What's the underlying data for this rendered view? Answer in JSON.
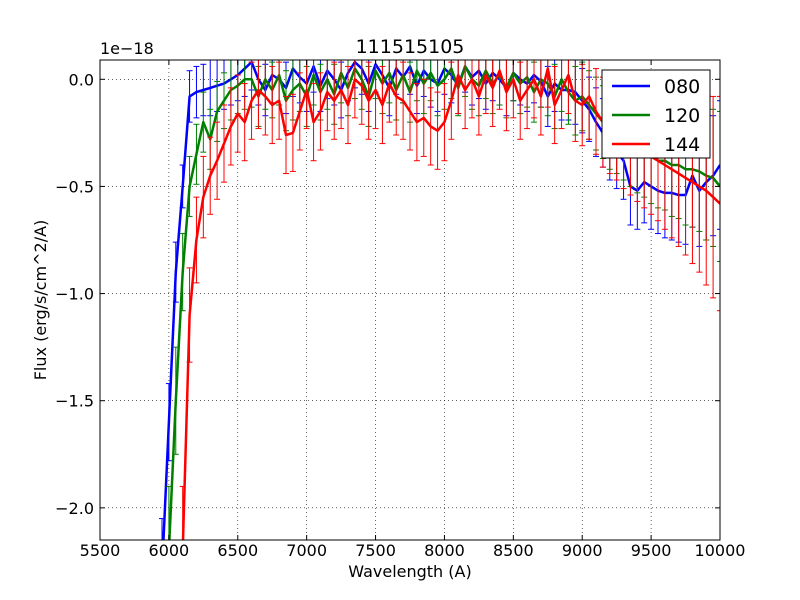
{
  "chart_data": {
    "type": "line",
    "title": "111515105",
    "xlabel": "Wavelength (A)",
    "ylabel": "Flux (erg/s/cm^2/A)",
    "y_offset_label": "1e−18",
    "xlim": [
      5500,
      10000
    ],
    "ylim": [
      -2.15,
      0.09
    ],
    "x_ticks": [
      5500,
      6000,
      6500,
      7000,
      7500,
      8000,
      8500,
      9000,
      9500,
      10000
    ],
    "x_tick_labels": [
      "5500",
      "6000",
      "6500",
      "7000",
      "7500",
      "8000",
      "8500",
      "9000",
      "9500",
      "10000"
    ],
    "y_ticks": [
      -2.0,
      -1.5,
      -1.0,
      -0.5,
      0.0
    ],
    "y_tick_labels": [
      "−2.0",
      "−1.5",
      "−1.0",
      "−0.5",
      "0.0"
    ],
    "grid": true,
    "legend_position": "top-right",
    "series": [
      {
        "name": "080",
        "color": "#0000ff",
        "x": [
          5950,
          6000,
          6050,
          6100,
          6150,
          6200,
          6250,
          6300,
          6350,
          6400,
          6450,
          6500,
          6550,
          6600,
          6650,
          6700,
          6750,
          6800,
          6850,
          6900,
          6950,
          7000,
          7050,
          7100,
          7150,
          7200,
          7250,
          7300,
          7350,
          7400,
          7450,
          7500,
          7550,
          7600,
          7650,
          7700,
          7750,
          7800,
          7850,
          7900,
          7950,
          8000,
          8050,
          8100,
          8150,
          8200,
          8250,
          8300,
          8350,
          8400,
          8450,
          8500,
          8550,
          8600,
          8650,
          8700,
          8750,
          8800,
          8850,
          8900,
          8950,
          9000,
          9050,
          9100,
          9150,
          9200,
          9250,
          9300,
          9350,
          9400,
          9450,
          9500,
          9550,
          9600,
          9650,
          9700,
          9750,
          9800,
          9850,
          9900,
          9950,
          10000
        ],
        "y": [
          -2.3,
          -1.6,
          -0.9,
          -0.5,
          -0.08,
          -0.06,
          -0.05,
          -0.04,
          -0.03,
          -0.02,
          0.0,
          0.02,
          0.05,
          0.08,
          0.0,
          -0.05,
          0.02,
          0.0,
          -0.04,
          0.05,
          0.01,
          -0.02,
          0.06,
          -0.03,
          0.04,
          0.0,
          -0.05,
          0.03,
          0.08,
          0.05,
          -0.02,
          0.07,
          0.02,
          -0.04,
          0.05,
          0.01,
          0.06,
          -0.03,
          0.04,
          0.0,
          -0.02,
          0.05,
          0.02,
          -0.03,
          0.06,
          0.01,
          0.04,
          -0.02,
          0.03,
          0.0,
          -0.04,
          0.03,
          0.0,
          -0.02,
          0.02,
          -0.01,
          -0.08,
          -0.02,
          -0.05,
          -0.05,
          -0.06,
          -0.1,
          -0.14,
          -0.2,
          -0.25,
          -0.3,
          -0.34,
          -0.38,
          -0.5,
          -0.52,
          -0.48,
          -0.5,
          -0.52,
          -0.53,
          -0.53,
          -0.54,
          -0.54,
          -0.45,
          -0.52,
          -0.48,
          -0.45,
          -0.4
        ],
        "err": [
          0.25,
          0.18,
          0.14,
          0.1,
          0.12,
          0.12,
          0.12,
          0.13,
          0.12,
          0.12,
          0.12,
          0.12,
          0.13,
          0.13,
          0.12,
          0.12,
          0.13,
          0.12,
          0.12,
          0.13,
          0.12,
          0.13,
          0.12,
          0.12,
          0.13,
          0.12,
          0.13,
          0.13,
          0.12,
          0.12,
          0.13,
          0.13,
          0.12,
          0.13,
          0.12,
          0.12,
          0.13,
          0.13,
          0.12,
          0.13,
          0.13,
          0.12,
          0.13,
          0.13,
          0.12,
          0.13,
          0.13,
          0.12,
          0.13,
          0.12,
          0.13,
          0.13,
          0.12,
          0.13,
          0.13,
          0.12,
          0.14,
          0.13,
          0.14,
          0.14,
          0.15,
          0.15,
          0.15,
          0.16,
          0.16,
          0.17,
          0.17,
          0.18,
          0.18,
          0.18,
          0.19,
          0.2,
          0.2,
          0.21,
          0.22,
          0.22,
          0.23,
          0.24,
          0.26,
          0.27,
          0.28,
          0.3
        ]
      },
      {
        "name": "120",
        "color": "#008000",
        "x": [
          6000,
          6050,
          6100,
          6150,
          6200,
          6250,
          6300,
          6350,
          6400,
          6450,
          6500,
          6550,
          6600,
          6650,
          6700,
          6750,
          6800,
          6850,
          6900,
          6950,
          7000,
          7050,
          7100,
          7150,
          7200,
          7250,
          7300,
          7350,
          7400,
          7450,
          7500,
          7550,
          7600,
          7650,
          7700,
          7750,
          7800,
          7850,
          7900,
          7950,
          8000,
          8050,
          8100,
          8150,
          8200,
          8250,
          8300,
          8350,
          8400,
          8450,
          8500,
          8550,
          8600,
          8650,
          8700,
          8750,
          8800,
          8850,
          8900,
          8950,
          9000,
          9050,
          9100,
          9150,
          9200,
          9250,
          9300,
          9350,
          9400,
          9450,
          9500,
          9550,
          9600,
          9650,
          9700,
          9750,
          9800,
          9850,
          9900,
          9950,
          10000
        ],
        "y": [
          -2.2,
          -1.5,
          -0.9,
          -0.5,
          -0.35,
          -0.2,
          -0.28,
          -0.15,
          -0.1,
          -0.05,
          -0.03,
          0.0,
          0.0,
          -0.08,
          0.0,
          -0.05,
          0.02,
          -0.1,
          -0.05,
          -0.02,
          -0.08,
          0.02,
          -0.06,
          0.0,
          -0.07,
          0.03,
          -0.04,
          0.05,
          0.0,
          -0.08,
          0.04,
          -0.02,
          0.03,
          -0.05,
          0.02,
          -0.06,
          0.04,
          -0.02,
          0.03,
          -0.03,
          0.0,
          0.05,
          -0.04,
          0.06,
          0.0,
          -0.03,
          0.04,
          -0.02,
          0.02,
          -0.04,
          0.03,
          -0.02,
          0.01,
          -0.06,
          0.0,
          -0.02,
          -0.08,
          0.0,
          -0.06,
          -0.1,
          -0.08,
          -0.12,
          -0.16,
          -0.2,
          -0.24,
          -0.26,
          -0.28,
          -0.3,
          -0.33,
          -0.34,
          -0.36,
          -0.38,
          -0.38,
          -0.4,
          -0.4,
          -0.42,
          -0.42,
          -0.43,
          -0.45,
          -0.46,
          -0.5
        ],
        "err": [
          0.3,
          0.25,
          0.18,
          0.14,
          0.14,
          0.14,
          0.14,
          0.14,
          0.13,
          0.14,
          0.13,
          0.14,
          0.13,
          0.14,
          0.14,
          0.13,
          0.14,
          0.14,
          0.14,
          0.13,
          0.14,
          0.14,
          0.13,
          0.14,
          0.14,
          0.14,
          0.13,
          0.14,
          0.14,
          0.14,
          0.13,
          0.14,
          0.14,
          0.14,
          0.13,
          0.14,
          0.14,
          0.14,
          0.13,
          0.14,
          0.14,
          0.14,
          0.13,
          0.14,
          0.14,
          0.14,
          0.13,
          0.14,
          0.14,
          0.14,
          0.13,
          0.14,
          0.14,
          0.14,
          0.13,
          0.15,
          0.15,
          0.15,
          0.15,
          0.16,
          0.16,
          0.16,
          0.17,
          0.17,
          0.18,
          0.18,
          0.19,
          0.2,
          0.2,
          0.21,
          0.22,
          0.22,
          0.23,
          0.24,
          0.25,
          0.26,
          0.27,
          0.28,
          0.3,
          0.32,
          0.35
        ]
      },
      {
        "name": "144",
        "color": "#ff0000",
        "x": [
          6100,
          6150,
          6200,
          6250,
          6300,
          6350,
          6400,
          6450,
          6500,
          6550,
          6600,
          6650,
          6700,
          6750,
          6800,
          6850,
          6900,
          6950,
          7000,
          7050,
          7100,
          7150,
          7200,
          7250,
          7300,
          7350,
          7400,
          7450,
          7500,
          7550,
          7600,
          7650,
          7700,
          7750,
          7800,
          7850,
          7900,
          7950,
          8000,
          8050,
          8100,
          8150,
          8200,
          8250,
          8300,
          8350,
          8400,
          8450,
          8500,
          8550,
          8600,
          8650,
          8700,
          8750,
          8800,
          8850,
          8900,
          8950,
          9000,
          9050,
          9100,
          9150,
          9200,
          9250,
          9300,
          9350,
          9400,
          9450,
          9500,
          9550,
          9600,
          9650,
          9700,
          9750,
          9800,
          9850,
          9900,
          9950,
          10000
        ],
        "y": [
          -2.2,
          -1.1,
          -0.75,
          -0.55,
          -0.45,
          -0.38,
          -0.3,
          -0.22,
          -0.16,
          -0.2,
          -0.1,
          -0.05,
          -0.08,
          -0.12,
          -0.1,
          -0.26,
          -0.25,
          -0.15,
          -0.05,
          -0.2,
          -0.15,
          -0.06,
          -0.1,
          -0.05,
          -0.12,
          0.0,
          -0.03,
          -0.1,
          -0.05,
          -0.12,
          -0.02,
          -0.08,
          -0.1,
          -0.15,
          -0.2,
          -0.18,
          -0.22,
          -0.24,
          -0.2,
          -0.1,
          0.02,
          -0.05,
          0.0,
          -0.08,
          0.02,
          -0.04,
          0.04,
          -0.06,
          0.0,
          -0.1,
          -0.05,
          0.0,
          -0.08,
          0.05,
          -0.12,
          -0.05,
          0.02,
          -0.1,
          -0.12,
          -0.08,
          -0.15,
          -0.2,
          -0.22,
          -0.25,
          -0.28,
          -0.3,
          -0.32,
          -0.34,
          -0.36,
          -0.38,
          -0.4,
          -0.42,
          -0.44,
          -0.46,
          -0.48,
          -0.5,
          -0.52,
          -0.55,
          -0.58
        ],
        "err": [
          0.3,
          0.22,
          0.2,
          0.19,
          0.18,
          0.18,
          0.18,
          0.18,
          0.18,
          0.18,
          0.18,
          0.18,
          0.18,
          0.18,
          0.18,
          0.18,
          0.18,
          0.18,
          0.18,
          0.18,
          0.18,
          0.18,
          0.18,
          0.18,
          0.18,
          0.18,
          0.18,
          0.18,
          0.18,
          0.18,
          0.18,
          0.18,
          0.18,
          0.18,
          0.18,
          0.18,
          0.18,
          0.18,
          0.18,
          0.18,
          0.18,
          0.18,
          0.18,
          0.18,
          0.18,
          0.18,
          0.18,
          0.18,
          0.18,
          0.18,
          0.18,
          0.18,
          0.18,
          0.18,
          0.18,
          0.18,
          0.18,
          0.19,
          0.19,
          0.2,
          0.2,
          0.21,
          0.22,
          0.22,
          0.23,
          0.24,
          0.25,
          0.26,
          0.27,
          0.28,
          0.3,
          0.32,
          0.34,
          0.36,
          0.38,
          0.4,
          0.44,
          0.47,
          0.5
        ]
      }
    ]
  }
}
